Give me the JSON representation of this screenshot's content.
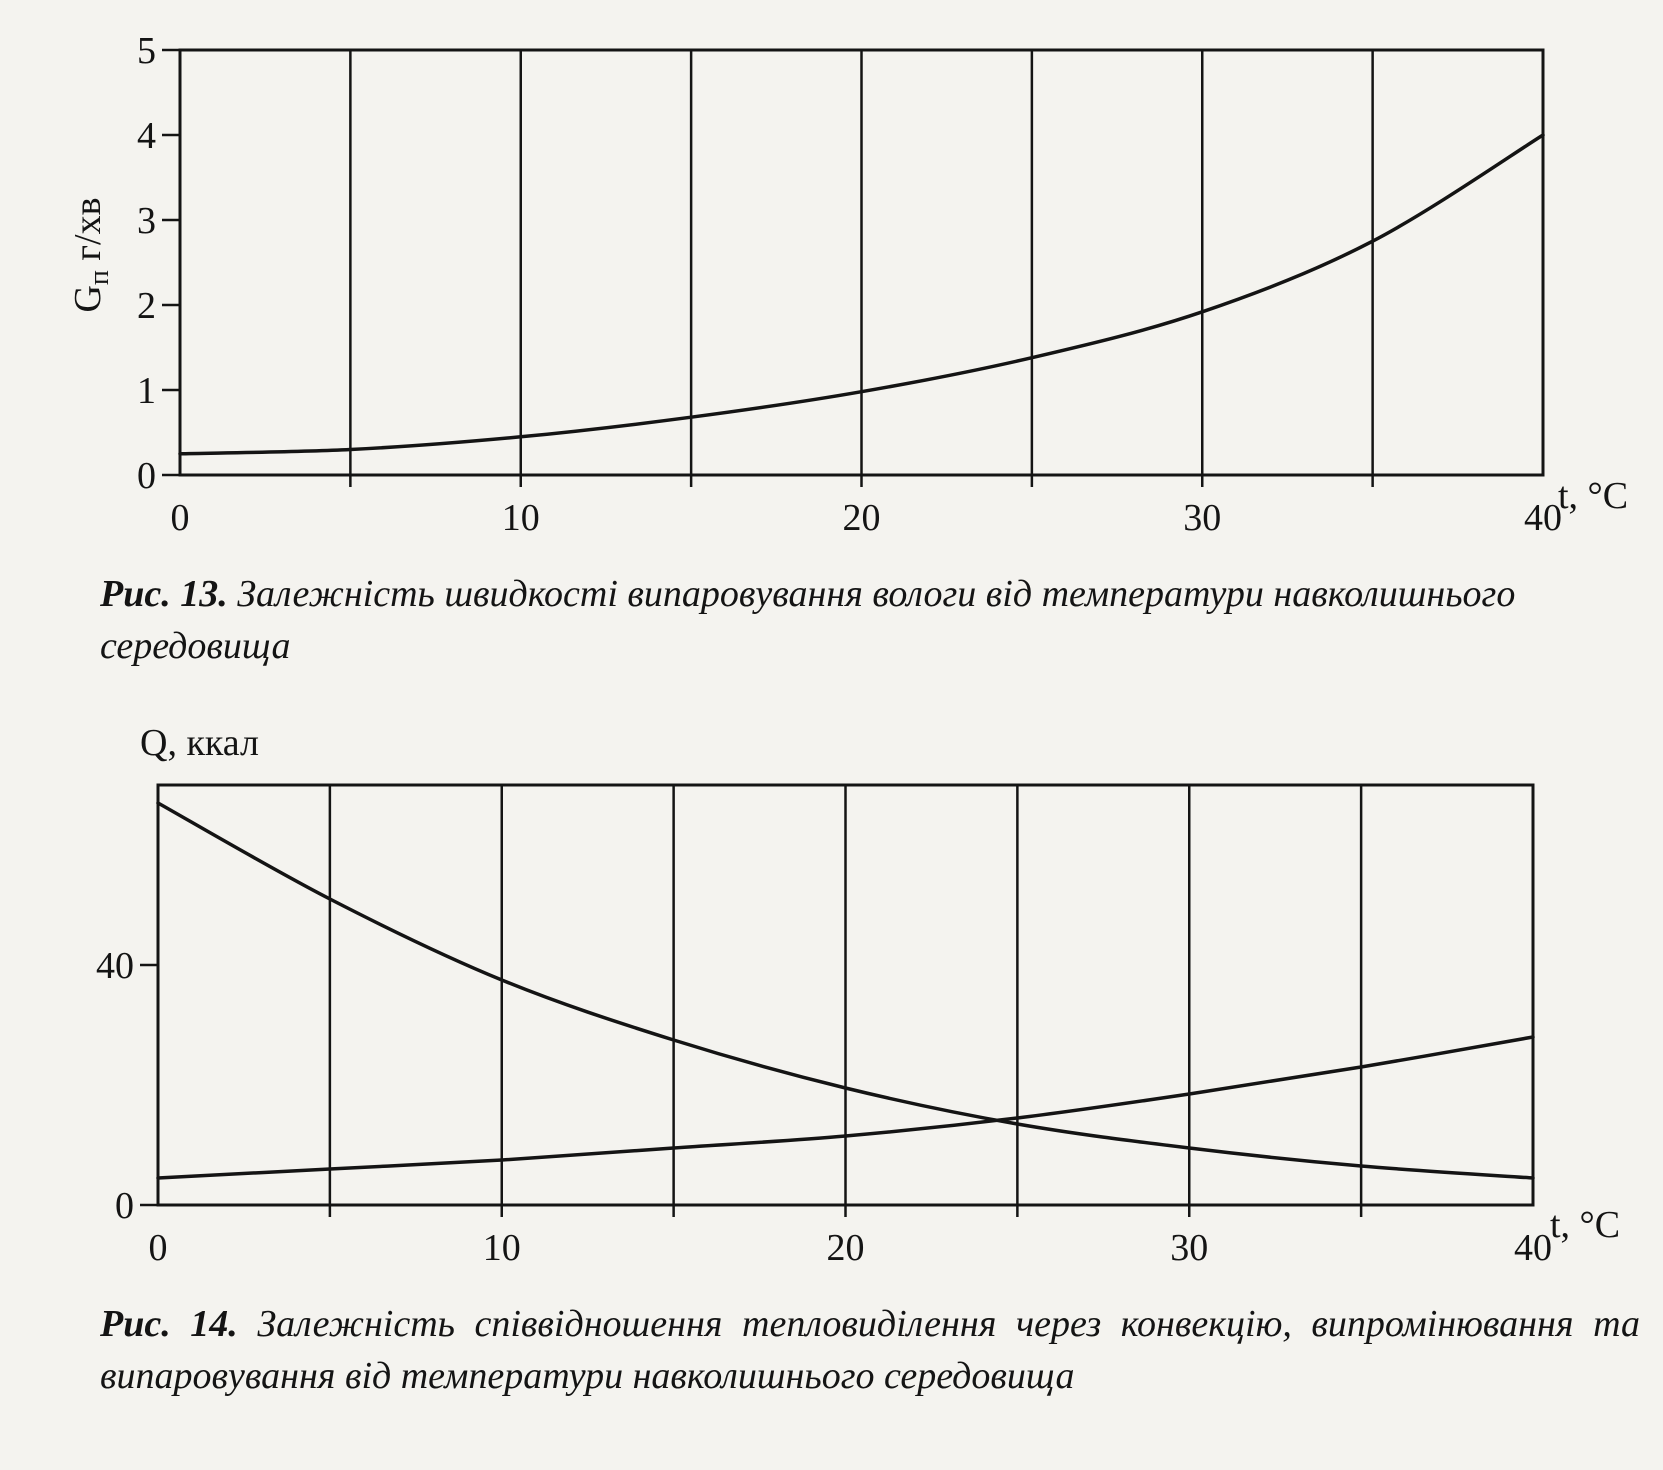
{
  "figures": [
    {
      "caption_label": "Рис. 13.",
      "caption_text": "Залежність швидкості випаровування вологи від температури навколишнього середовища"
    },
    {
      "caption_label": "Рис. 14.",
      "caption_text": "Залежність співвідношення тепловиділення через конвекцію, випромінювання та випаровування від температури навколишнього середовища"
    }
  ],
  "chart_data": [
    {
      "type": "line",
      "ylabel_main": "G",
      "ylabel_sub": "п",
      "ylabel_unit": " г/хв",
      "xlabel": "t, °C",
      "xlim": [
        0,
        40
      ],
      "ylim": [
        0,
        5
      ],
      "x_ticks": [
        0,
        10,
        20,
        30,
        40
      ],
      "y_ticks": [
        0,
        1,
        2,
        3,
        4,
        5
      ],
      "grid": true,
      "series": [
        {
          "x": [
            0,
            5,
            10,
            15,
            20,
            25,
            30,
            35,
            40
          ],
          "values": [
            0.25,
            0.3,
            0.45,
            0.68,
            0.98,
            1.38,
            1.92,
            2.75,
            4.0
          ]
        }
      ]
    },
    {
      "type": "line",
      "ylabel": "Q, ккал",
      "xlabel": "t, °C",
      "xlim": [
        0,
        40
      ],
      "ylim": [
        0,
        70
      ],
      "x_ticks": [
        0,
        10,
        20,
        30,
        40
      ],
      "y_ticks": [
        0,
        40
      ],
      "grid": true,
      "series": [
        {
          "x": [
            0,
            5,
            10,
            15,
            20,
            25,
            30,
            35,
            40
          ],
          "values": [
            67,
            51,
            37.5,
            27.5,
            19.5,
            13.5,
            9.5,
            6.5,
            4.5
          ]
        },
        {
          "x": [
            0,
            5,
            10,
            15,
            20,
            25,
            30,
            35,
            40
          ],
          "values": [
            4.5,
            6,
            7.5,
            9.5,
            11.5,
            14.5,
            18.5,
            23,
            28
          ]
        }
      ]
    }
  ]
}
